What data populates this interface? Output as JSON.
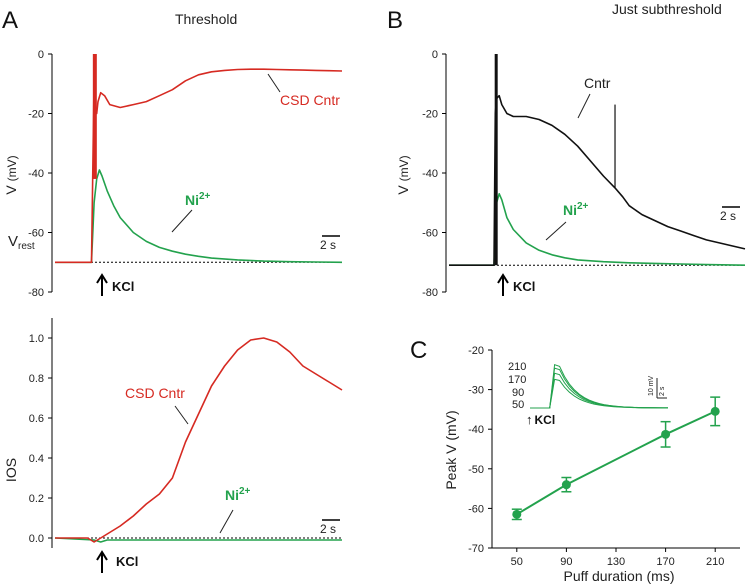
{
  "colors": {
    "red": "#d62a22",
    "green": "#23a24d",
    "black": "#111111"
  },
  "chart_data": [
    {
      "panel": "A",
      "subtitle": "Threshold",
      "type": "line",
      "ylabel": "V",
      "yunit": "(mV)",
      "ylim": [
        -80,
        0
      ],
      "yticks": [
        "0",
        "-20",
        "-40",
        "-60",
        "-80"
      ],
      "scalebar": "2 s",
      "stimulus": "KCl",
      "rest_label": "V",
      "rest_sub": "rest",
      "series": [
        {
          "name": "CSD Cntr",
          "color": "red",
          "t": [
            0,
            2.8,
            3,
            3.1,
            3.2,
            3.3,
            3.5,
            3.8,
            4.2,
            5,
            6,
            7,
            8,
            9,
            10,
            11,
            12,
            13,
            14,
            15,
            16,
            17,
            18,
            19,
            20,
            21,
            22
          ],
          "v": [
            -70,
            -70,
            -8,
            -18,
            -20,
            -16,
            -13,
            -14,
            -17,
            -18,
            -17,
            -16,
            -14,
            -12,
            -9,
            -7,
            -6,
            -5.5,
            -5.2,
            -5.1,
            -5.1,
            -5.2,
            -5.3,
            -5.4,
            -5.5,
            -5.6,
            -5.7
          ]
        },
        {
          "name": "Ni",
          "sup": "2+",
          "color": "green",
          "t": [
            0,
            2.8,
            3,
            3.2,
            3.4,
            3.6,
            4,
            4.5,
            5,
            6,
            7,
            8,
            9,
            10,
            11,
            12,
            14,
            16,
            18,
            20,
            22
          ],
          "v": [
            -70,
            -70,
            -50,
            -42,
            -39,
            -41,
            -46,
            -51,
            -55,
            -60,
            -63,
            -65,
            -66.3,
            -67.3,
            -68,
            -68.6,
            -69.2,
            -69.6,
            -69.8,
            -69.9,
            -70
          ]
        }
      ]
    },
    {
      "panel": "B",
      "subtitle": "Just subthreshold",
      "type": "line",
      "ylabel": "V",
      "yunit": "(mV)",
      "ylim": [
        -80,
        0
      ],
      "yticks": [
        "0",
        "-20",
        "-40",
        "-60",
        "-80"
      ],
      "scalebar": "2 s",
      "stimulus": "KCl",
      "series": [
        {
          "name": "Cntr",
          "color": "black",
          "t": [
            0,
            3.5,
            3.6,
            3.7,
            3.9,
            4.1,
            4.5,
            5,
            6,
            7,
            8,
            9,
            10,
            11,
            12,
            12.9,
            13.5,
            14,
            15,
            16,
            17,
            18,
            19,
            20,
            21,
            22,
            23
          ],
          "v": [
            -71,
            -71,
            -20,
            -15,
            -14,
            -17,
            -20,
            -21,
            -21,
            -22,
            -24,
            -27,
            -31,
            -36,
            -41,
            -45,
            -48,
            -51,
            -54,
            -56,
            -58,
            -59.5,
            -61,
            -62.5,
            -63.5,
            -64.5,
            -65.5
          ]
        },
        {
          "name": "Ni",
          "sup": "2+",
          "color": "green",
          "t": [
            0,
            3.5,
            3.7,
            3.9,
            4.1,
            4.5,
            5,
            6,
            7,
            8,
            9,
            10,
            12,
            14,
            16,
            18,
            20,
            23
          ],
          "v": [
            -71,
            -71,
            -50,
            -47,
            -49,
            -55,
            -59,
            -63.5,
            -66,
            -67.5,
            -68.5,
            -69.2,
            -69.8,
            -70.2,
            -70.4,
            -70.6,
            -70.8,
            -71
          ]
        }
      ]
    },
    {
      "panel": "A-bottom",
      "type": "line",
      "ylabel": "IOS",
      "ylim": [
        -0.05,
        1.1
      ],
      "yticks": [
        "1.0",
        "0.8",
        "0.6",
        "0.4",
        "0.2",
        "0.0"
      ],
      "scalebar": "2 s",
      "stimulus": "KCl",
      "series": [
        {
          "name": "CSD Cntr",
          "color": "red",
          "t": [
            0,
            2.5,
            3,
            3.5,
            4,
            5,
            6,
            7,
            8,
            9,
            10,
            11,
            12,
            13,
            14,
            15,
            16,
            17,
            18,
            19,
            20,
            21,
            22
          ],
          "v": [
            0,
            0,
            -0.02,
            0,
            0.02,
            0.06,
            0.11,
            0.17,
            0.22,
            0.3,
            0.48,
            0.62,
            0.76,
            0.86,
            0.94,
            0.99,
            1.0,
            0.98,
            0.93,
            0.86,
            0.82,
            0.78,
            0.74
          ]
        },
        {
          "name": "Ni",
          "sup": "2+",
          "color": "green",
          "t": [
            0,
            3,
            3.5,
            4,
            6,
            8,
            10,
            12,
            14,
            16,
            18,
            20,
            22
          ],
          "v": [
            0,
            -0.01,
            -0.02,
            -0.01,
            -0.01,
            -0.01,
            -0.01,
            -0.01,
            -0.01,
            -0.01,
            -0.01,
            -0.01,
            -0.01
          ]
        }
      ]
    },
    {
      "panel": "C",
      "type": "scatter",
      "xlabel": "Puff duration (ms)",
      "ylabel": "Peak V (mV)",
      "x": [
        50,
        90,
        170,
        210
      ],
      "y": [
        -61.5,
        -54,
        -41.3,
        -35.5
      ],
      "err": [
        1.3,
        1.8,
        3.2,
        3.6
      ],
      "xticks": [
        "50",
        "90",
        "130",
        "170",
        "210"
      ],
      "yticks": [
        "-20",
        "-30",
        "-40",
        "-50",
        "-60",
        "-70"
      ],
      "xlim": [
        30,
        230
      ],
      "ylim": [
        -70,
        -20
      ],
      "inset": {
        "labels": [
          "210",
          "170",
          "90",
          "50"
        ],
        "peaks": [
          -20,
          -24,
          -30,
          -37
        ],
        "scale_v": "10 mV",
        "scale_t": "2 s",
        "stimulus": "KCl"
      }
    }
  ]
}
